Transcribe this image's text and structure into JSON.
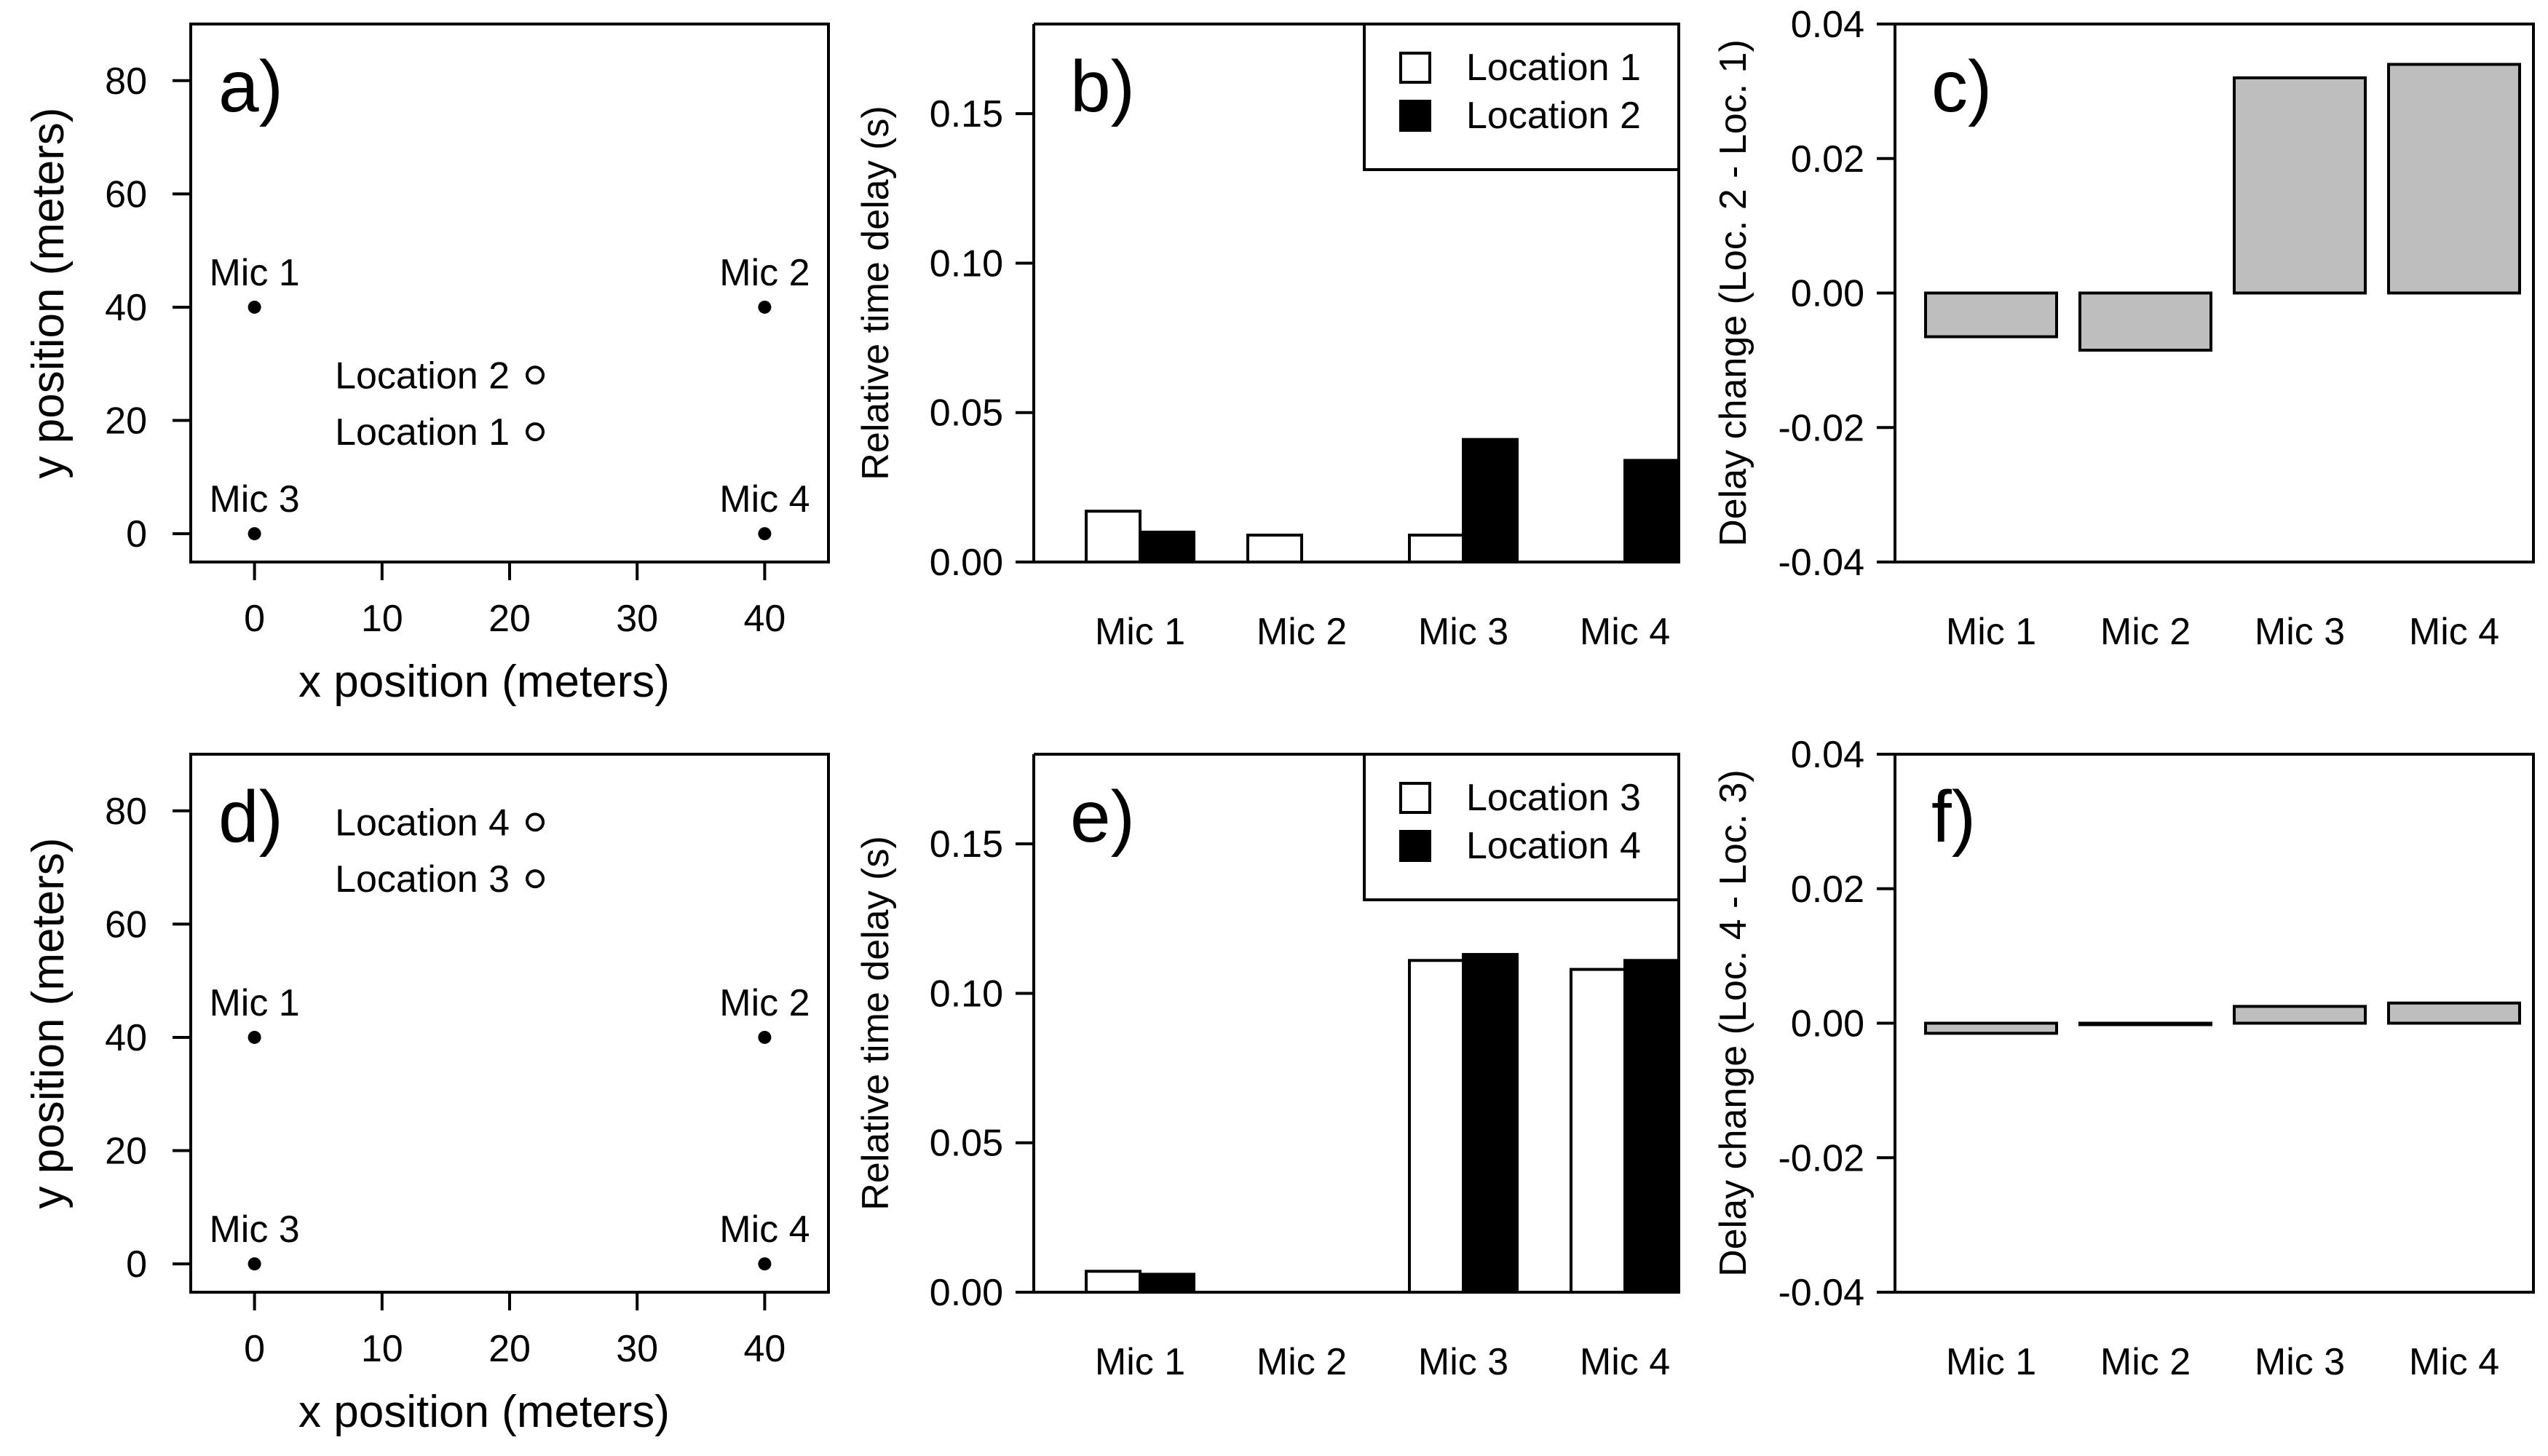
{
  "colors": {
    "fill_loc_a": "#ffffff",
    "fill_loc_b": "#000000",
    "fill_change": "#bebebe",
    "stroke": "#000000"
  },
  "chart_data": [
    {
      "id": "a",
      "panel_label": "a)",
      "type": "scatter",
      "xlabel": "x position (meters)",
      "ylabel": "y position (meters)",
      "xlim": [
        -5,
        45
      ],
      "ylim": [
        -5,
        90
      ],
      "xticks": [
        0,
        10,
        20,
        30,
        40
      ],
      "yticks": [
        0,
        20,
        40,
        60,
        80
      ],
      "mics": [
        {
          "label": "Mic 1",
          "x": 0,
          "y": 40
        },
        {
          "label": "Mic 2",
          "x": 40,
          "y": 40
        },
        {
          "label": "Mic 3",
          "x": 0,
          "y": 0
        },
        {
          "label": "Mic 4",
          "x": 40,
          "y": 0
        }
      ],
      "locations": [
        {
          "label": "Location 2",
          "x": 22,
          "y": 28
        },
        {
          "label": "Location 1",
          "x": 22,
          "y": 18
        }
      ]
    },
    {
      "id": "b",
      "panel_label": "b)",
      "type": "bar",
      "categories": [
        "Mic 1",
        "Mic 2",
        "Mic 3",
        "Mic 4"
      ],
      "ylabel": "Relative time delay (s)",
      "xlabel": "",
      "ylim": [
        0,
        0.18
      ],
      "yticks": [
        "0.00",
        "0.05",
        "0.10",
        "0.15"
      ],
      "legend": "top-right",
      "series": [
        {
          "name": "Location 1",
          "values": [
            0.017,
            0.009,
            0.009,
            0.0
          ]
        },
        {
          "name": "Location 2",
          "values": [
            0.01,
            0.0,
            0.041,
            0.034
          ]
        }
      ]
    },
    {
      "id": "c",
      "panel_label": "c)",
      "type": "bar",
      "categories": [
        "Mic 1",
        "Mic 2",
        "Mic 3",
        "Mic 4"
      ],
      "ylabel": "Delay change (Loc. 2 - Loc. 1)",
      "xlabel": "",
      "ylim": [
        -0.04,
        0.04
      ],
      "yticks": [
        "-0.04",
        "-0.02",
        "0.00",
        "0.02",
        "0.04"
      ],
      "values": [
        -0.0065,
        -0.0085,
        0.032,
        0.034
      ]
    },
    {
      "id": "d",
      "panel_label": "d)",
      "type": "scatter",
      "xlabel": "x position (meters)",
      "ylabel": "y position (meters)",
      "xlim": [
        -5,
        45
      ],
      "ylim": [
        -5,
        90
      ],
      "xticks": [
        0,
        10,
        20,
        30,
        40
      ],
      "yticks": [
        0,
        20,
        40,
        60,
        80
      ],
      "mics": [
        {
          "label": "Mic 1",
          "x": 0,
          "y": 40
        },
        {
          "label": "Mic 2",
          "x": 40,
          "y": 40
        },
        {
          "label": "Mic 3",
          "x": 0,
          "y": 0
        },
        {
          "label": "Mic 4",
          "x": 40,
          "y": 0
        }
      ],
      "locations": [
        {
          "label": "Location 4",
          "x": 22,
          "y": 78
        },
        {
          "label": "Location 3",
          "x": 22,
          "y": 68
        }
      ]
    },
    {
      "id": "e",
      "panel_label": "e)",
      "type": "bar",
      "categories": [
        "Mic 1",
        "Mic 2",
        "Mic 3",
        "Mic 4"
      ],
      "ylabel": "Relative time delay (s)",
      "xlabel": "",
      "ylim": [
        0,
        0.18
      ],
      "yticks": [
        "0.00",
        "0.05",
        "0.10",
        "0.15"
      ],
      "legend": "top-right",
      "series": [
        {
          "name": "Location 3",
          "values": [
            0.007,
            0.0,
            0.111,
            0.108
          ]
        },
        {
          "name": "Location 4",
          "values": [
            0.006,
            0.0,
            0.113,
            0.111
          ]
        }
      ]
    },
    {
      "id": "f",
      "panel_label": "f)",
      "type": "bar",
      "categories": [
        "Mic 1",
        "Mic 2",
        "Mic 3",
        "Mic 4"
      ],
      "ylabel": "Delay change (Loc. 4 - Loc. 3)",
      "xlabel": "",
      "ylim": [
        -0.04,
        0.04
      ],
      "yticks": [
        "-0.04",
        "-0.02",
        "0.00",
        "0.02",
        "0.04"
      ],
      "values": [
        -0.0015,
        0.0,
        0.0025,
        0.003
      ]
    }
  ]
}
